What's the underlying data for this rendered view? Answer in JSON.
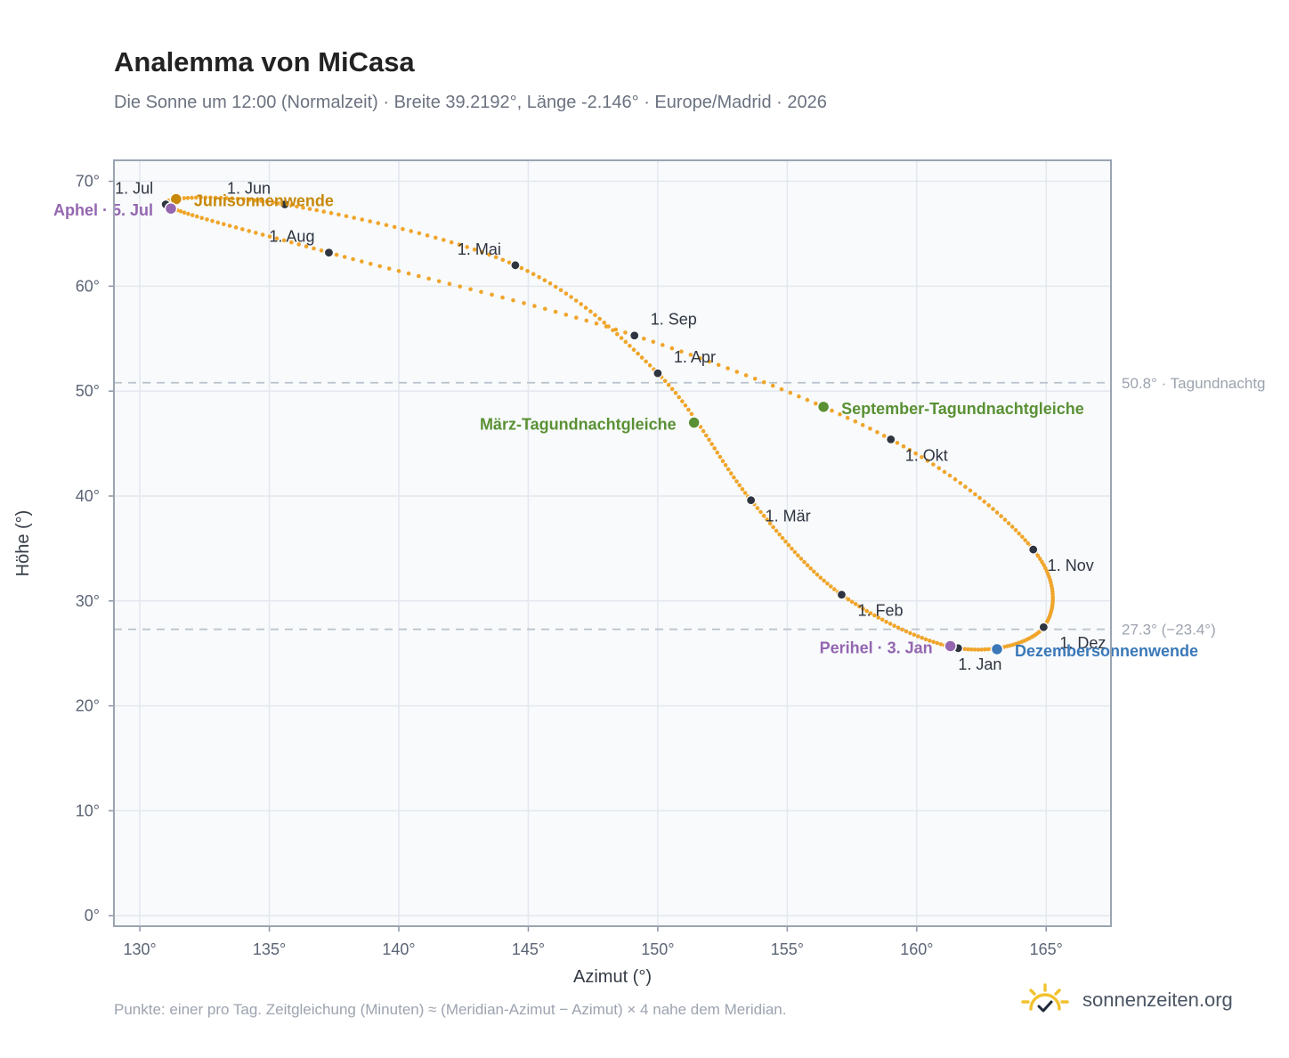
{
  "title": "Analemma von MiCasa",
  "subtitle": "Die Sonne um 12:00 (Normalzeit) · Breite 39.2192°, Länge -2.146° · Europe/Madrid · 2026",
  "footnote": "Punkte: einer pro Tag. Zeitgleichung (Minuten) ≈ (Meridian-Azimut − Azimut) × 4 nahe dem Meridian.",
  "brand": {
    "name": "sonnenzeiten.org",
    "icon": "sun-check-icon"
  },
  "colors": {
    "curve": "#f0a52a",
    "month_dot": "#2f3540",
    "solstice_june": "#c8880a",
    "solstice_december": "#3a78b8",
    "equinox": "#5a9134",
    "apsis": "#9466b0",
    "grid": "#e3e8ee",
    "plot_bg": "#f8fafc",
    "ref_line": "#b8c2cc"
  },
  "chart_data": {
    "type": "scatter",
    "title": "Analemma von MiCasa",
    "xlabel": "Azimut (°)",
    "ylabel": "Höhe (°)",
    "xlim": [
      129,
      167.5
    ],
    "ylim": [
      -1,
      72
    ],
    "xticks": [
      "130°",
      "135°",
      "140°",
      "145°",
      "150°",
      "155°",
      "160°",
      "165°"
    ],
    "yticks": [
      "0°",
      "10°",
      "20°",
      "30°",
      "40°",
      "50°",
      "60°",
      "70°"
    ],
    "grid": true,
    "series_note": "daily points",
    "months": [
      {
        "label": "1. Jan",
        "az": 161.6,
        "alt": 25.5
      },
      {
        "label": "1. Feb",
        "az": 157.1,
        "alt": 30.6
      },
      {
        "label": "1. Mär",
        "az": 153.6,
        "alt": 39.6
      },
      {
        "label": "1. Apr",
        "az": 150.0,
        "alt": 51.7
      },
      {
        "label": "1. Mai",
        "az": 144.5,
        "alt": 62.0
      },
      {
        "label": "1. Jun",
        "az": 135.6,
        "alt": 67.8
      },
      {
        "label": "1. Jul",
        "az": 131.0,
        "alt": 67.8
      },
      {
        "label": "1. Aug",
        "az": 137.3,
        "alt": 63.2
      },
      {
        "label": "1. Sep",
        "az": 149.1,
        "alt": 55.3
      },
      {
        "label": "1. Okt",
        "az": 159.0,
        "alt": 45.4
      },
      {
        "label": "1. Nov",
        "az": 164.5,
        "alt": 34.9
      },
      {
        "label": "1. Dez",
        "az": 164.9,
        "alt": 27.5
      }
    ],
    "events": [
      {
        "label": "Junisonnenwende",
        "az": 131.4,
        "alt": 68.3,
        "kind": "solstice_june"
      },
      {
        "label": "Dezembersonnenwende",
        "az": 163.1,
        "alt": 25.4,
        "kind": "solstice_december"
      },
      {
        "label": "März-Tagundnachtgleiche",
        "az": 151.4,
        "alt": 47.0,
        "kind": "equinox"
      },
      {
        "label": "September-Tagundnachtgleiche",
        "az": 156.4,
        "alt": 48.5,
        "kind": "equinox"
      },
      {
        "label": "Aphel · 5. Jul",
        "az": 131.2,
        "alt": 67.4,
        "kind": "apsis"
      },
      {
        "label": "Perihel · 3. Jan",
        "az": 161.3,
        "alt": 25.7,
        "kind": "apsis"
      }
    ],
    "reference_lines": [
      {
        "alt": 50.8,
        "label": "50.8° · Tagundnachtg"
      },
      {
        "alt": 27.3,
        "label": "27.3° (−23.4°)"
      }
    ]
  }
}
